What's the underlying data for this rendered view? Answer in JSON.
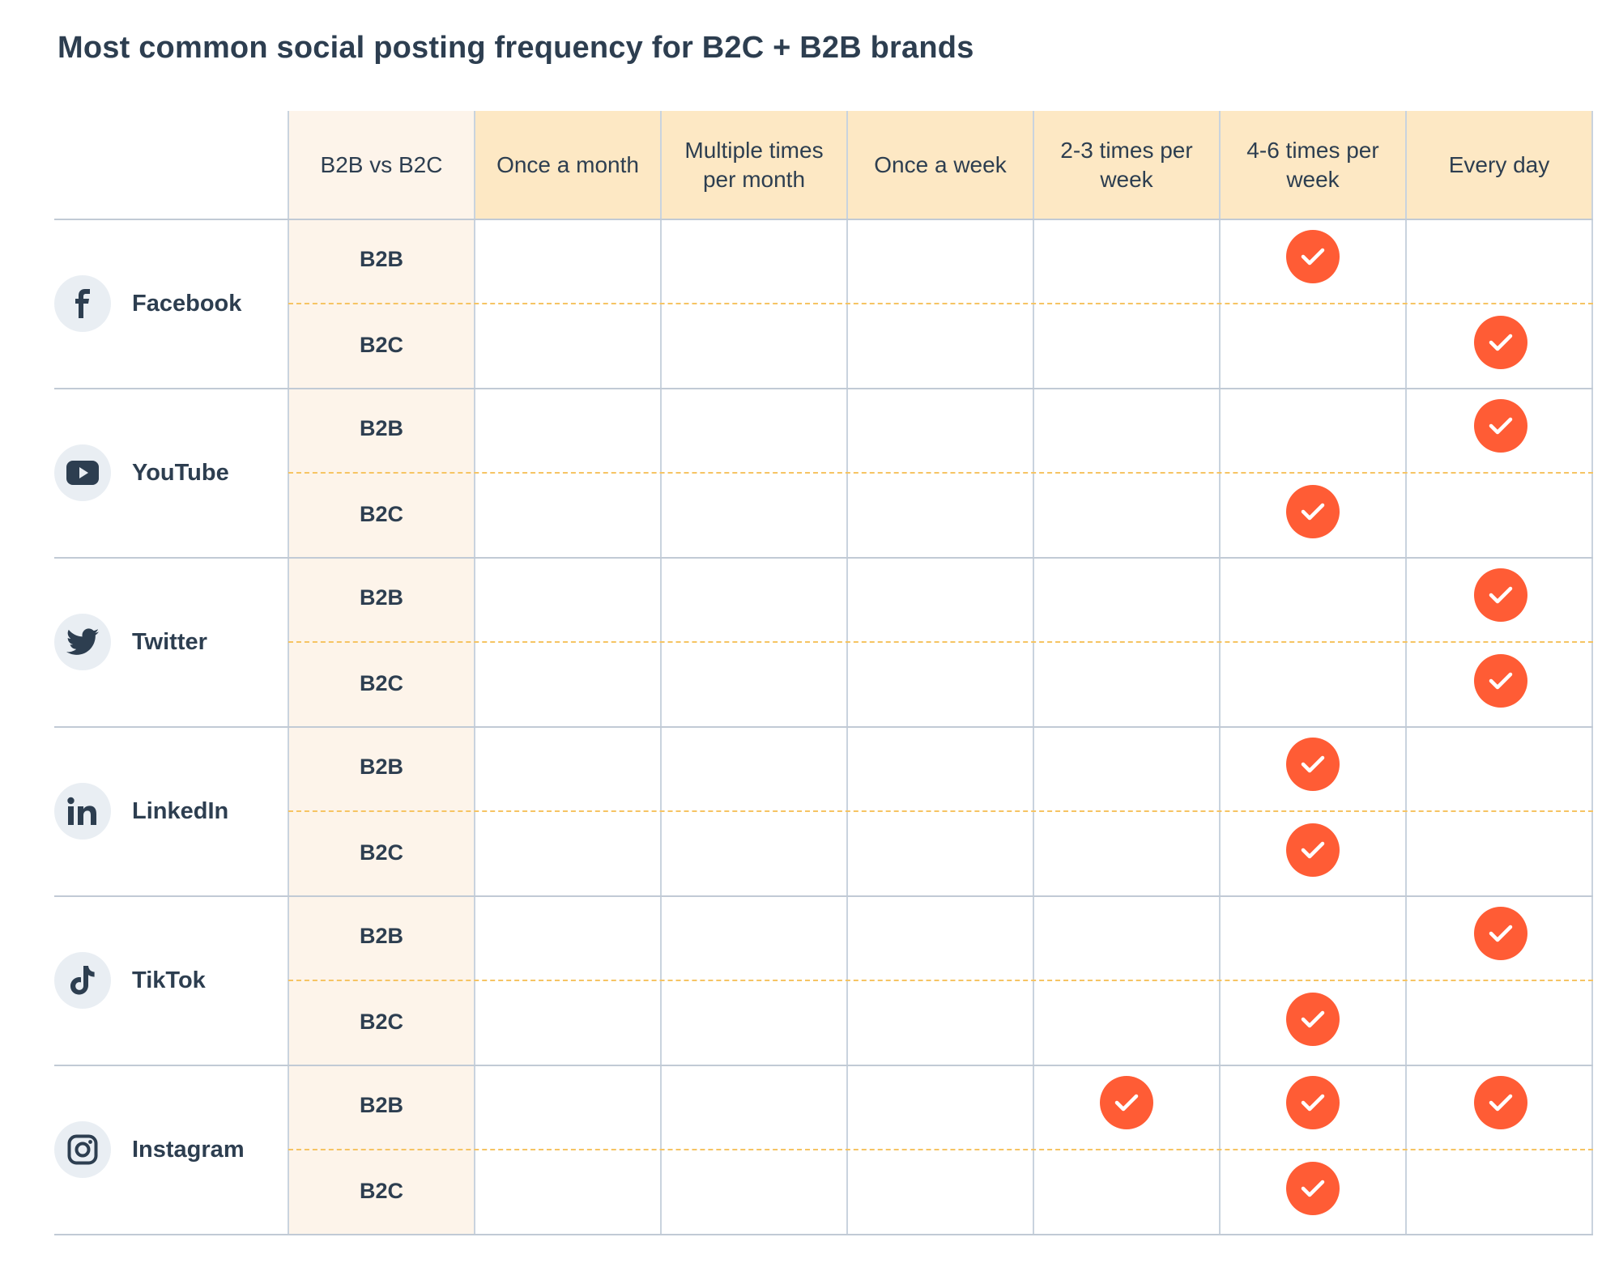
{
  "title": "Most common social posting frequency for B2C + B2B brands",
  "colors": {
    "check": "#ff5c35",
    "header_bg": "#fde8c4",
    "type_col_bg": "#fdf4ea",
    "dashed": "#f6c463",
    "text": "#2d3e50"
  },
  "chart_data": {
    "type": "table",
    "title": "Most common social posting frequency for B2C + B2B brands",
    "type_header": "B2B vs B2C",
    "columns": [
      "Once a month",
      "Multiple times per month",
      "Once a week",
      "2-3 times per week",
      "4-6 times per week",
      "Every day"
    ],
    "platforms": [
      {
        "name": "Facebook",
        "icon": "facebook-icon",
        "rows": [
          {
            "type": "B2B",
            "checks": [
              "4-6 times per week"
            ]
          },
          {
            "type": "B2C",
            "checks": [
              "Every day"
            ]
          }
        ]
      },
      {
        "name": "YouTube",
        "icon": "youtube-icon",
        "rows": [
          {
            "type": "B2B",
            "checks": [
              "Every day"
            ]
          },
          {
            "type": "B2C",
            "checks": [
              "4-6 times per week"
            ]
          }
        ]
      },
      {
        "name": "Twitter",
        "icon": "twitter-icon",
        "rows": [
          {
            "type": "B2B",
            "checks": [
              "Every day"
            ]
          },
          {
            "type": "B2C",
            "checks": [
              "Every day"
            ]
          }
        ]
      },
      {
        "name": "LinkedIn",
        "icon": "linkedin-icon",
        "rows": [
          {
            "type": "B2B",
            "checks": [
              "4-6 times per week"
            ]
          },
          {
            "type": "B2C",
            "checks": [
              "4-6 times per week"
            ]
          }
        ]
      },
      {
        "name": "TikTok",
        "icon": "tiktok-icon",
        "rows": [
          {
            "type": "B2B",
            "checks": [
              "Every day"
            ]
          },
          {
            "type": "B2C",
            "checks": [
              "4-6 times per week"
            ]
          }
        ]
      },
      {
        "name": "Instagram",
        "icon": "instagram-icon",
        "rows": [
          {
            "type": "B2B",
            "checks": [
              "2-3 times per week",
              "4-6 times per week",
              "Every day"
            ]
          },
          {
            "type": "B2C",
            "checks": [
              "4-6 times per week"
            ]
          }
        ]
      }
    ]
  }
}
